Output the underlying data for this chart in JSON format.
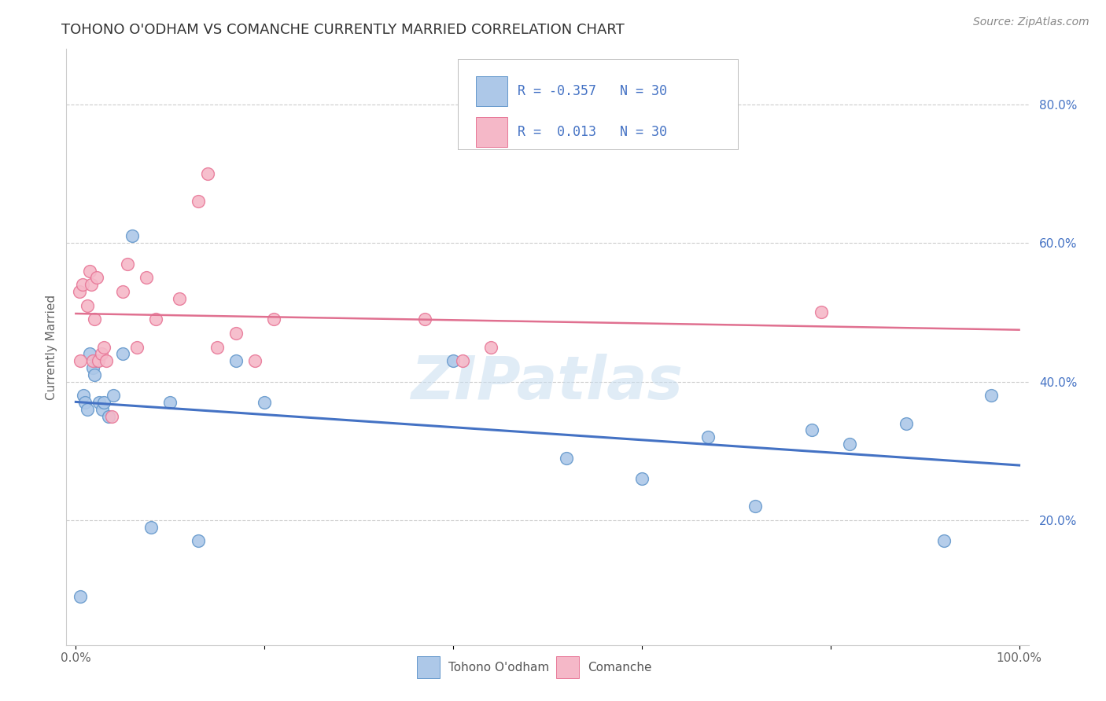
{
  "title": "TOHONO O'ODHAM VS COMANCHE CURRENTLY MARRIED CORRELATION CHART",
  "source": "Source: ZipAtlas.com",
  "ylabel": "Currently Married",
  "xlim": [
    -0.01,
    1.01
  ],
  "ylim": [
    0.02,
    0.88
  ],
  "xticks": [
    0.0,
    0.2,
    0.4,
    0.6,
    0.8,
    1.0
  ],
  "xticklabels": [
    "0.0%",
    "",
    "",
    "",
    "",
    "100.0%"
  ],
  "yticks": [
    0.2,
    0.4,
    0.6,
    0.8
  ],
  "yticklabels": [
    "20.0%",
    "40.0%",
    "60.0%",
    "80.0%"
  ],
  "grid_color": "#cccccc",
  "bg_color": "#ffffff",
  "watermark": "ZIPatlas",
  "tohono_color": "#adc8e8",
  "comanche_color": "#f5b8c8",
  "tohono_edge": "#6699cc",
  "comanche_edge": "#e87898",
  "line_blue": "#4472c4",
  "line_pink": "#e07090",
  "ytick_color": "#4472c4",
  "legend_r_tohono": "-0.357",
  "legend_n_tohono": "30",
  "legend_r_comanche": "0.013",
  "legend_n_comanche": "30",
  "tohono_x": [
    0.005,
    0.008,
    0.01,
    0.012,
    0.015,
    0.018,
    0.02,
    0.022,
    0.025,
    0.028,
    0.03,
    0.035,
    0.04,
    0.05,
    0.06,
    0.08,
    0.1,
    0.13,
    0.17,
    0.2,
    0.4,
    0.52,
    0.6,
    0.67,
    0.72,
    0.78,
    0.82,
    0.88,
    0.92,
    0.97
  ],
  "tohono_y": [
    0.09,
    0.38,
    0.37,
    0.36,
    0.44,
    0.42,
    0.41,
    0.43,
    0.37,
    0.36,
    0.37,
    0.35,
    0.38,
    0.44,
    0.61,
    0.19,
    0.37,
    0.17,
    0.43,
    0.37,
    0.43,
    0.29,
    0.26,
    0.32,
    0.22,
    0.33,
    0.31,
    0.34,
    0.17,
    0.38
  ],
  "comanche_x": [
    0.004,
    0.007,
    0.012,
    0.015,
    0.016,
    0.018,
    0.02,
    0.022,
    0.024,
    0.027,
    0.03,
    0.032,
    0.038,
    0.05,
    0.055,
    0.065,
    0.075,
    0.085,
    0.11,
    0.13,
    0.14,
    0.15,
    0.17,
    0.19,
    0.21,
    0.37,
    0.41,
    0.44,
    0.79,
    0.005
  ],
  "comanche_y": [
    0.53,
    0.54,
    0.51,
    0.56,
    0.54,
    0.43,
    0.49,
    0.55,
    0.43,
    0.44,
    0.45,
    0.43,
    0.35,
    0.53,
    0.57,
    0.45,
    0.55,
    0.49,
    0.52,
    0.66,
    0.7,
    0.45,
    0.47,
    0.43,
    0.49,
    0.49,
    0.43,
    0.45,
    0.5,
    0.43
  ]
}
